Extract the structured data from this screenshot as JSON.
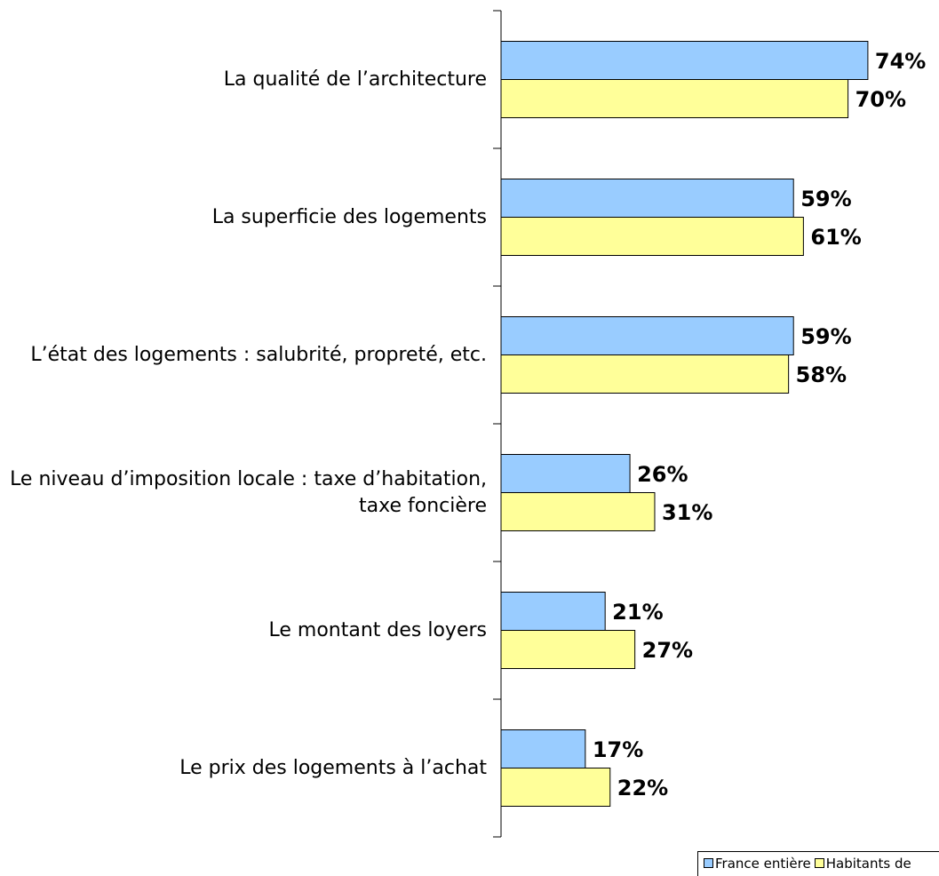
{
  "chart_data": {
    "type": "hbar",
    "categories": [
      "La qualité de l’architecture",
      "La superficie des logements",
      "L’état des logements : salubrité, propreté, etc.",
      "Le niveau d’imposition locale : taxe d’habitation, taxe foncière",
      "Le montant des loyers",
      "Le prix des logements à l’achat"
    ],
    "series": [
      {
        "name": "France entière",
        "color": "#99ccff",
        "values": [
          74,
          59,
          59,
          26,
          21,
          17
        ],
        "value_labels": [
          "74%",
          "59%",
          "59%",
          "26%",
          "21%",
          "17%"
        ]
      },
      {
        "name": "Habitants de",
        "color": "#ffff99",
        "values": [
          70,
          61,
          58,
          31,
          27,
          22
        ],
        "value_labels": [
          "70%",
          "61%",
          "58%",
          "31%",
          "27%",
          "22%"
        ]
      }
    ],
    "xlim": [
      0,
      100
    ],
    "legend": "bottom-right"
  }
}
